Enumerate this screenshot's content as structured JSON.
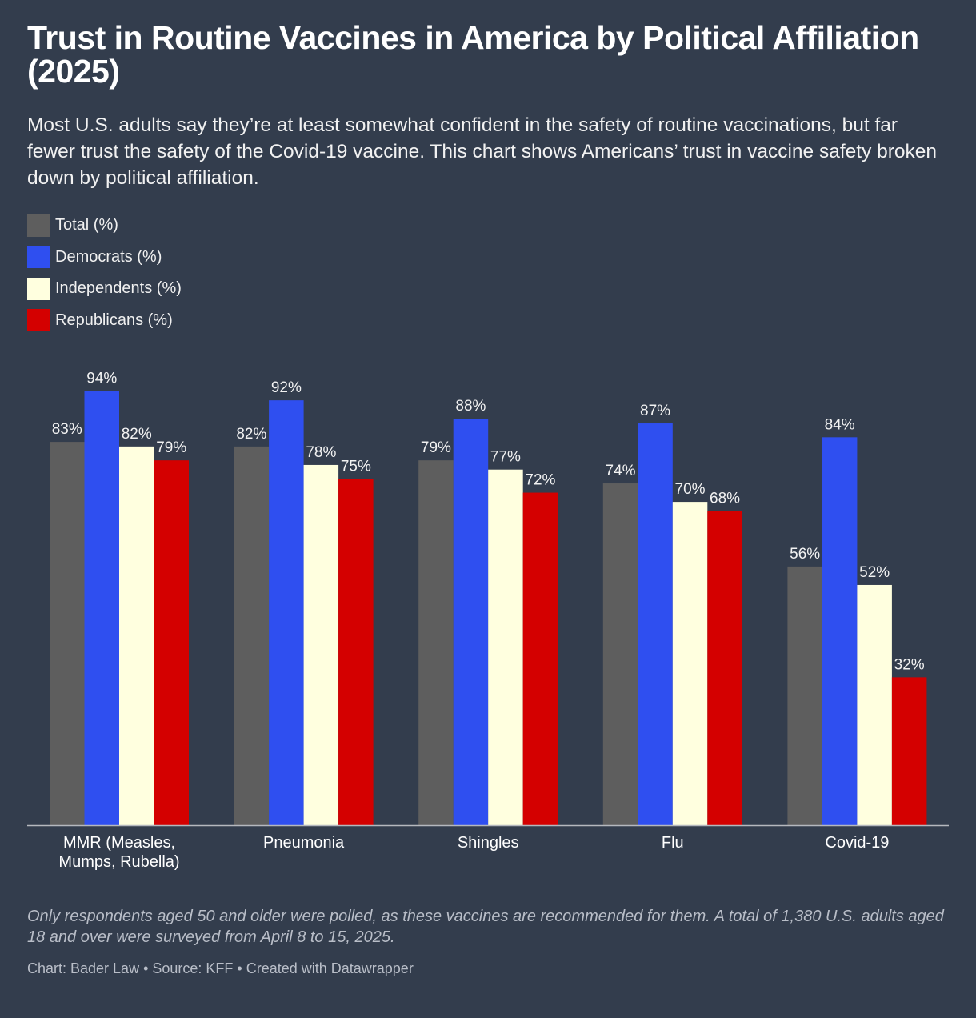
{
  "title": "Trust in Routine Vaccines in America by Political Affiliation (2025)",
  "subtitle": "Most U.S. adults say they’re at least somewhat confident in the safety of routine vaccinations, but far fewer trust the safety of the Covid-19 vaccine. This chart shows Americans’ trust in vaccine safety broken down by political affiliation.",
  "legend": [
    {
      "label": "Total (%)",
      "color": "#5e5e5e"
    },
    {
      "label": "Democrats (%)",
      "color": "#2f4ff0"
    },
    {
      "label": "Independents (%)",
      "color": "#ffffdf"
    },
    {
      "label": "Republicans (%)",
      "color": "#d40000"
    }
  ],
  "note": "Only respondents aged 50 and older were polled, as these vaccines are recommended for them. A total of 1,380 U.S. adults aged 18 and over were surveyed from April 8 to 15, 2025.",
  "footer": "Chart: Bader Law • Source: KFF • Created with Datawrapper",
  "chart_data": {
    "type": "bar",
    "title": "Trust in Routine Vaccines in America by Political Affiliation (2025)",
    "categories": [
      [
        "MMR (Measles,",
        "Mumps, Rubella)"
      ],
      [
        "Pneumonia"
      ],
      [
        "Shingles"
      ],
      [
        "Flu"
      ],
      [
        "Covid-19"
      ]
    ],
    "series": [
      {
        "name": "Total (%)",
        "color": "#5e5e5e",
        "values": [
          83,
          82,
          79,
          74,
          56
        ]
      },
      {
        "name": "Democrats (%)",
        "color": "#2f4ff0",
        "values": [
          94,
          92,
          88,
          87,
          84
        ]
      },
      {
        "name": "Independents (%)",
        "color": "#ffffdf",
        "values": [
          82,
          78,
          77,
          70,
          52
        ]
      },
      {
        "name": "Republicans (%)",
        "color": "#d40000",
        "values": [
          79,
          75,
          72,
          68,
          32
        ]
      }
    ],
    "value_suffix": "%",
    "ylim": [
      0,
      100
    ],
    "xlabel": "",
    "ylabel": "",
    "grid": false,
    "legend_position": "top-left"
  }
}
